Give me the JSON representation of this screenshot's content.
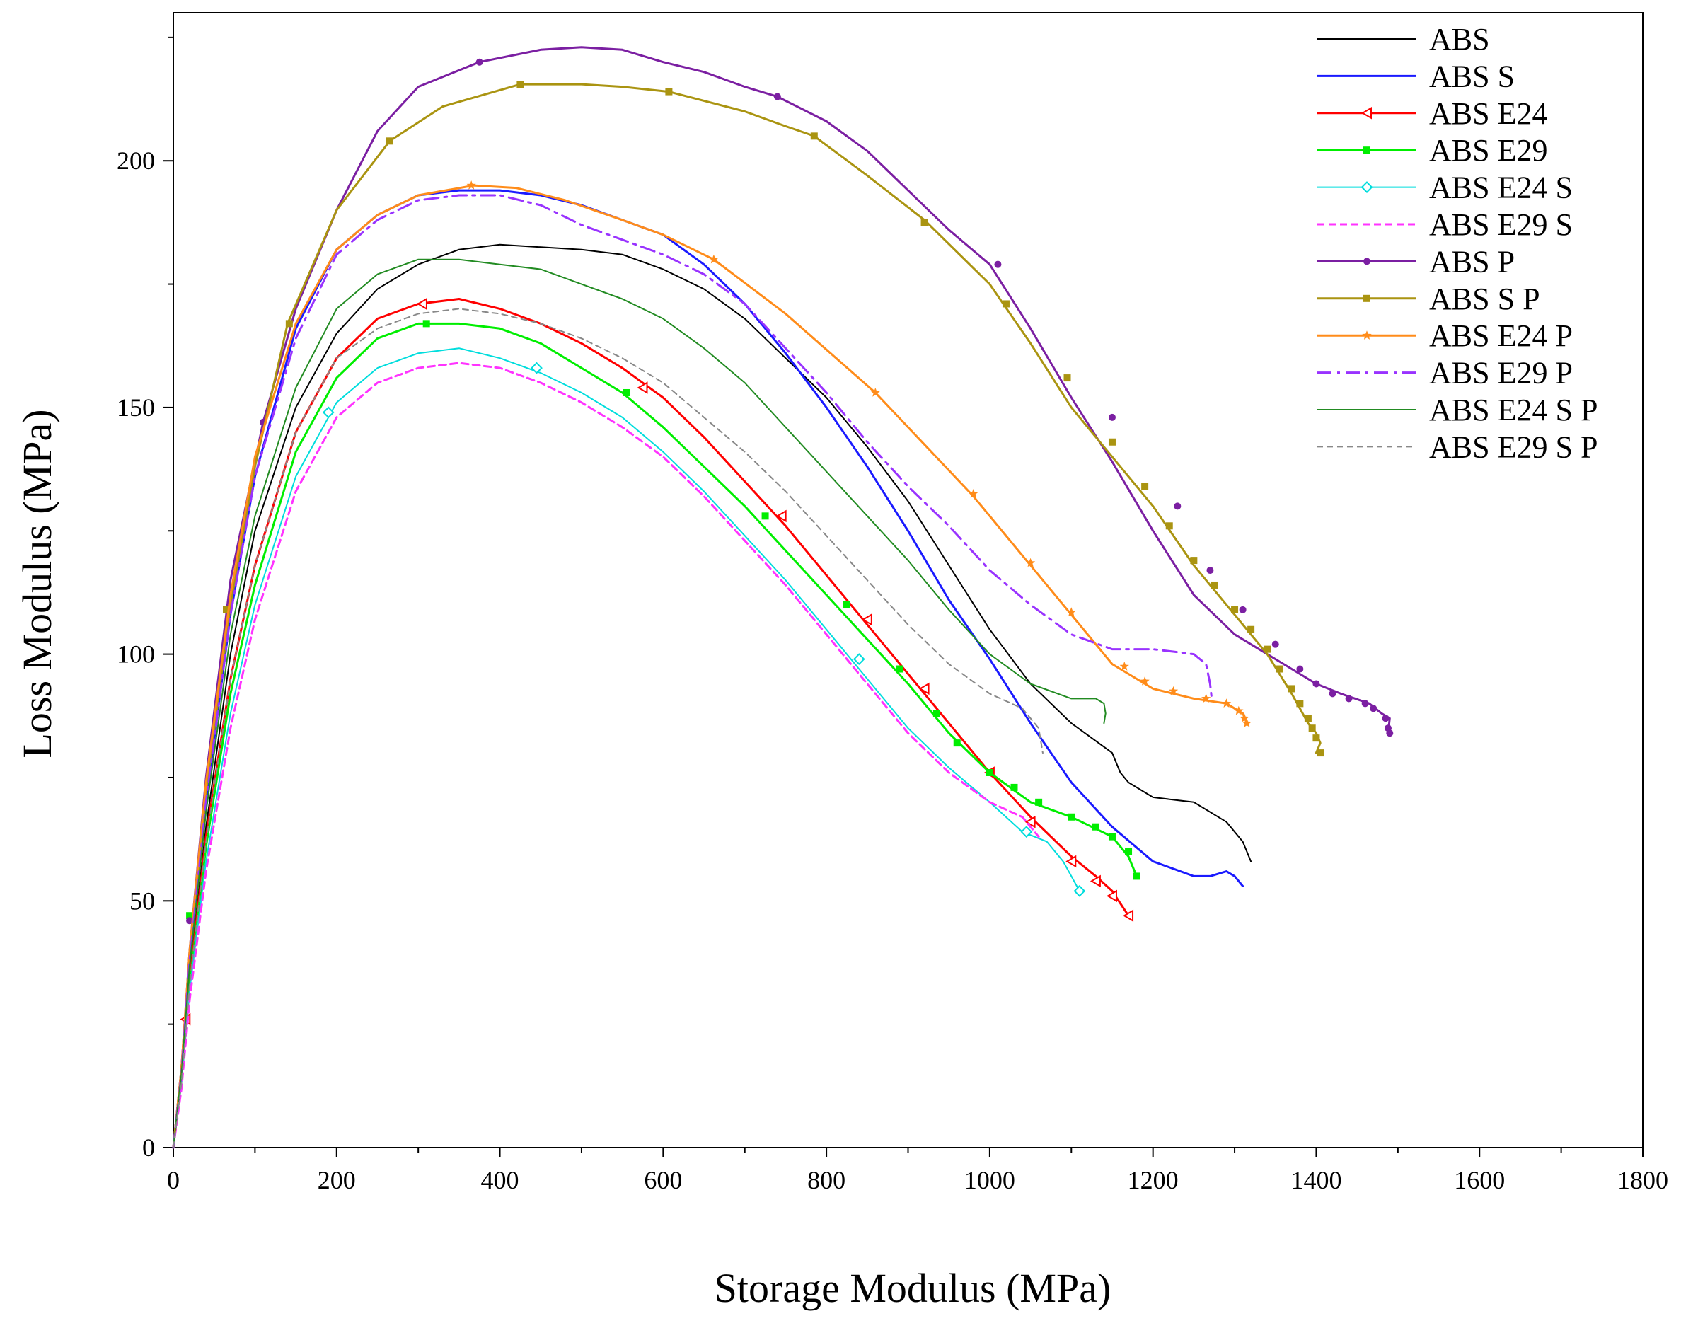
{
  "chart_data": {
    "type": "line",
    "title": "",
    "xlabel": "Storage Modulus (MPa)",
    "ylabel": "Loss Modulus (MPa)",
    "xlim": [
      0,
      1800
    ],
    "ylim": [
      0,
      230
    ],
    "xticks": [
      0,
      200,
      400,
      600,
      800,
      1000,
      1200,
      1400,
      1600,
      1800
    ],
    "yticks": [
      0,
      50,
      100,
      150,
      200
    ],
    "grid": false,
    "legend_position": "top-right",
    "series": [
      {
        "name": "ABS",
        "color": "#000000",
        "dash": "",
        "width": 2,
        "marker": "none",
        "x": [
          0,
          10,
          20,
          40,
          70,
          100,
          150,
          200,
          250,
          300,
          350,
          400,
          450,
          500,
          550,
          600,
          650,
          700,
          750,
          800,
          850,
          900,
          950,
          1000,
          1050,
          1100,
          1150,
          1160,
          1170,
          1200,
          1250,
          1290,
          1310,
          1320
        ],
        "y": [
          0,
          15,
          35,
          65,
          100,
          125,
          150,
          165,
          174,
          179,
          182,
          183,
          182.5,
          182,
          181,
          178,
          174,
          168,
          160,
          152,
          142,
          131,
          118,
          105,
          94,
          86,
          80,
          76,
          74,
          71,
          70,
          66,
          62,
          58
        ]
      },
      {
        "name": "ABS S",
        "color": "#1a1aff",
        "dash": "",
        "width": 3,
        "marker": "none",
        "x": [
          0,
          10,
          20,
          40,
          70,
          100,
          150,
          200,
          250,
          300,
          350,
          400,
          450,
          500,
          550,
          600,
          650,
          700,
          750,
          800,
          850,
          900,
          950,
          1000,
          1050,
          1100,
          1150,
          1200,
          1250,
          1270,
          1290,
          1300,
          1310
        ],
        "y": [
          0,
          16,
          38,
          70,
          108,
          136,
          166,
          182,
          189,
          193,
          194,
          194,
          193,
          191,
          188,
          185,
          179,
          171,
          161,
          150,
          138,
          125,
          111,
          99,
          86,
          74,
          65,
          58,
          55,
          55,
          56,
          55,
          53
        ]
      },
      {
        "name": "ABS E24",
        "color": "#ff0000",
        "dash": "",
        "width": 3,
        "marker": "tri",
        "x": [
          0,
          10,
          20,
          40,
          70,
          100,
          150,
          200,
          250,
          300,
          350,
          400,
          450,
          500,
          550,
          600,
          650,
          700,
          750,
          800,
          850,
          900,
          950,
          1000,
          1050,
          1100,
          1130,
          1150,
          1170
        ],
        "y": [
          0,
          14,
          34,
          63,
          95,
          118,
          145,
          160,
          168,
          171,
          172,
          170,
          167,
          163,
          158,
          152,
          144,
          135,
          126,
          116,
          106,
          96,
          86,
          76,
          67,
          59,
          55,
          52,
          47
        ],
        "markers_x": [
          15,
          305,
          575,
          745,
          850,
          920,
          1000,
          1050,
          1100,
          1130,
          1150,
          1170
        ],
        "markers_y": [
          26,
          171,
          154,
          128,
          107,
          93,
          76,
          66,
          58,
          54,
          51,
          47
        ]
      },
      {
        "name": "ABS E29",
        "color": "#00ee00",
        "dash": "",
        "width": 3,
        "marker": "square",
        "x": [
          0,
          10,
          20,
          40,
          70,
          100,
          150,
          200,
          250,
          300,
          350,
          400,
          450,
          500,
          550,
          600,
          650,
          700,
          750,
          800,
          850,
          900,
          950,
          1000,
          1050,
          1100,
          1150,
          1170,
          1180
        ],
        "y": [
          0,
          14,
          33,
          61,
          92,
          114,
          141,
          156,
          164,
          167,
          167,
          166,
          163,
          158,
          153,
          146,
          138,
          130,
          121,
          112,
          103,
          94,
          84,
          76,
          70,
          67,
          63,
          59,
          55
        ],
        "markers_x": [
          20,
          310,
          555,
          725,
          825,
          890,
          935,
          960,
          1000,
          1030,
          1060,
          1100,
          1130,
          1150,
          1170,
          1180
        ],
        "markers_y": [
          47,
          167,
          153,
          128,
          110,
          97,
          88,
          82,
          76,
          73,
          70,
          67,
          65,
          63,
          60,
          55
        ]
      },
      {
        "name": "ABS E24 S",
        "color": "#00dddd",
        "dash": "",
        "width": 2,
        "marker": "diamond",
        "x": [
          0,
          10,
          20,
          40,
          70,
          100,
          150,
          200,
          250,
          300,
          350,
          400,
          450,
          500,
          550,
          600,
          650,
          700,
          750,
          800,
          850,
          900,
          950,
          1000,
          1040,
          1070,
          1090,
          1100,
          1110
        ],
        "y": [
          0,
          13,
          32,
          58,
          88,
          110,
          136,
          151,
          158,
          161,
          162,
          160,
          157,
          153,
          148,
          141,
          133,
          124,
          115,
          105,
          95,
          85,
          77,
          70,
          64,
          62,
          58,
          55,
          52
        ],
        "markers_x": [
          190,
          445,
          840,
          1045,
          1110
        ],
        "markers_y": [
          149,
          158,
          99,
          64,
          52
        ]
      },
      {
        "name": "ABS E29 S",
        "color": "#ff33ff",
        "dash": "10,6",
        "width": 3,
        "marker": "none",
        "x": [
          0,
          10,
          20,
          40,
          70,
          100,
          150,
          200,
          250,
          300,
          350,
          400,
          450,
          500,
          550,
          600,
          650,
          700,
          750,
          800,
          850,
          900,
          950,
          1000,
          1040,
          1060
        ],
        "y": [
          0,
          12,
          30,
          56,
          85,
          107,
          133,
          148,
          155,
          158,
          159,
          158,
          155,
          151,
          146,
          140,
          132,
          123,
          114,
          104,
          94,
          84,
          76,
          70,
          67,
          63
        ]
      },
      {
        "name": "ABS P",
        "color": "#7b1fa2",
        "dash": "",
        "width": 3,
        "marker": "circle",
        "x": [
          0,
          10,
          20,
          40,
          70,
          110,
          150,
          200,
          250,
          300,
          375,
          450,
          500,
          550,
          600,
          650,
          700,
          740,
          800,
          850,
          900,
          950,
          1000,
          1050,
          1100,
          1150,
          1200,
          1250,
          1300,
          1350,
          1400,
          1430,
          1465,
          1480,
          1490,
          1488
        ],
        "y": [
          0,
          16,
          40,
          75,
          115,
          147,
          170,
          190,
          206,
          215,
          220,
          222.5,
          223,
          222.5,
          220,
          218,
          215,
          213,
          208,
          202,
          194,
          186,
          179,
          166,
          152,
          139,
          125,
          112,
          104,
          99,
          94,
          92,
          90,
          88,
          87,
          84
        ],
        "markers_x": [
          20,
          110,
          375,
          740,
          1010,
          1150,
          1230,
          1270,
          1310,
          1350,
          1380,
          1400,
          1420,
          1440,
          1460,
          1470,
          1485,
          1488,
          1490
        ],
        "markers_y": [
          46,
          147,
          220,
          213,
          179,
          148,
          130,
          117,
          109,
          102,
          97,
          94,
          92,
          91,
          90,
          89,
          87,
          85,
          84
        ]
      },
      {
        "name": "ABS S P",
        "color": "#aa9411",
        "dash": "",
        "width": 3,
        "marker": "square",
        "x": [
          0,
          10,
          20,
          40,
          70,
          100,
          140,
          200,
          265,
          330,
          425,
          500,
          550,
          607,
          700,
          750,
          785,
          850,
          920,
          1000,
          1050,
          1100,
          1150,
          1200,
          1250,
          1300,
          1340,
          1370,
          1390,
          1400,
          1405,
          1400
        ],
        "y": [
          0,
          16,
          38,
          72,
          110,
          138,
          167,
          190,
          204,
          211,
          215.5,
          215.5,
          215,
          214,
          210,
          207,
          205,
          197,
          188,
          175,
          163,
          150,
          140,
          130,
          118,
          108,
          100,
          92,
          86,
          84,
          82,
          80
        ],
        "markers_x": [
          65,
          142,
          265,
          425,
          607,
          785,
          920,
          1020,
          1095,
          1150,
          1190,
          1220,
          1250,
          1275,
          1300,
          1320,
          1340,
          1355,
          1370,
          1380,
          1390,
          1395,
          1400,
          1405
        ],
        "markers_y": [
          109,
          167,
          204,
          215.5,
          214,
          205,
          187.5,
          171,
          156,
          143,
          134,
          126,
          119,
          114,
          109,
          105,
          101,
          97,
          93,
          90,
          87,
          85,
          83,
          80
        ]
      },
      {
        "name": "ABS E24 P",
        "color": "#ff8c1a",
        "dash": "",
        "width": 3,
        "marker": "star",
        "x": [
          0,
          10,
          20,
          40,
          70,
          100,
          150,
          200,
          250,
          300,
          368,
          420,
          480,
          550,
          600,
          662,
          750,
          860,
          980,
          1050,
          1100,
          1150,
          1200,
          1250,
          1290,
          1310,
          1315
        ],
        "y": [
          0,
          16,
          40,
          74,
          112,
          140,
          167,
          182,
          189,
          193,
          195,
          194.5,
          192,
          188,
          185,
          180,
          169,
          153,
          132,
          118,
          108,
          98,
          93,
          91,
          90,
          88,
          86
        ],
        "markers_x": [
          365,
          662,
          860,
          980,
          1050,
          1100,
          1165,
          1190,
          1225,
          1265,
          1290,
          1305,
          1312,
          1315
        ],
        "markers_y": [
          195,
          180,
          153,
          132.5,
          118.5,
          108.5,
          97.5,
          94.5,
          92.5,
          91,
          90,
          88.5,
          87,
          86
        ]
      },
      {
        "name": "ABS E29 P",
        "color": "#9933ff",
        "dash": "20,8,4,8",
        "width": 3,
        "marker": "none",
        "x": [
          0,
          10,
          20,
          40,
          70,
          100,
          150,
          200,
          250,
          300,
          350,
          400,
          450,
          500,
          550,
          600,
          650,
          700,
          750,
          800,
          850,
          900,
          950,
          1000,
          1050,
          1100,
          1150,
          1200,
          1250,
          1265,
          1270,
          1272
        ],
        "y": [
          0,
          15,
          38,
          70,
          108,
          136,
          164,
          181,
          188,
          192,
          193,
          193,
          191,
          187,
          184,
          181,
          177,
          171,
          162,
          153,
          143,
          134,
          126,
          117,
          110,
          104,
          101,
          101,
          100,
          98,
          94,
          91
        ]
      },
      {
        "name": "ABS E24 S P",
        "color": "#228b22",
        "dash": "",
        "width": 2,
        "marker": "none",
        "x": [
          0,
          10,
          20,
          40,
          70,
          100,
          150,
          200,
          250,
          300,
          350,
          400,
          450,
          500,
          550,
          600,
          650,
          700,
          750,
          800,
          850,
          900,
          950,
          1000,
          1050,
          1100,
          1130,
          1140,
          1142,
          1140
        ],
        "y": [
          0,
          15,
          37,
          68,
          104,
          128,
          154,
          170,
          177,
          180,
          180,
          179,
          178,
          175,
          172,
          168,
          162,
          155,
          146,
          137,
          128,
          119,
          109,
          100,
          94,
          91,
          91,
          90,
          88,
          86
        ]
      },
      {
        "name": "ABS E29 S P",
        "color": "#888888",
        "dash": "8,6",
        "width": 2,
        "marker": "none",
        "x": [
          0,
          10,
          20,
          40,
          70,
          100,
          150,
          200,
          250,
          300,
          350,
          400,
          450,
          500,
          550,
          600,
          650,
          700,
          750,
          800,
          850,
          900,
          950,
          1000,
          1040,
          1060,
          1065
        ],
        "y": [
          0,
          13,
          33,
          62,
          95,
          118,
          145,
          160,
          166,
          169,
          170,
          169,
          167,
          164,
          160,
          155,
          148,
          141,
          133,
          124,
          115,
          106,
          98,
          92,
          89,
          85,
          80
        ]
      }
    ]
  }
}
